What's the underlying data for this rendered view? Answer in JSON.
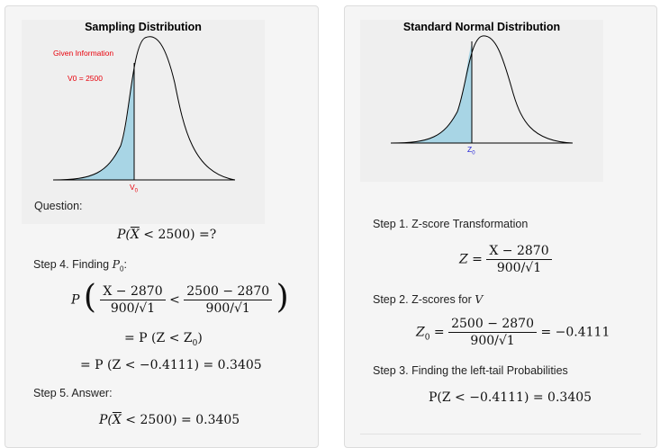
{
  "left": {
    "plot": {
      "title": "Sampling Distribution",
      "given": "Given Information",
      "v0_value": "V0 = 2500",
      "x_label": "V",
      "x_sub": "0",
      "colors": {
        "fill": "#a8d5e5",
        "curve": "#000000",
        "label": "#e8000b"
      }
    },
    "question_label": "Question:",
    "question": {
      "lhs_p": "P(",
      "xbar": "X",
      "rest": " < 2500) =?"
    },
    "step4": {
      "label": "Step 4. Finding ",
      "p": "P",
      "sub": "0",
      "colon": ":"
    },
    "step4_eq1": {
      "p": "P",
      "num1": "X − 2870",
      "den1": "900/√1",
      "lt": "<",
      "num2": "2500 − 2870",
      "den2": "900/√1"
    },
    "step4_eq2": "= P (Z < Z",
    "step4_eq2_sub": "0",
    "step4_eq2_end": ")",
    "step4_eq3": "= P (Z < −0.4111) = 0.3405",
    "step5_label": "Step 5. Answer:",
    "answer": {
      "p": "P(",
      "xbar": "X",
      "rest": " < 2500) = 0.3405"
    }
  },
  "right": {
    "plot": {
      "title": "Standard Normal Distribution",
      "x_label": "Z",
      "x_sub": "0",
      "colors": {
        "fill": "#a8d5e5",
        "curve": "#000000",
        "label": "#1f1fd6"
      }
    },
    "step1_label": "Step 1. Z-score Transformation",
    "step1_eq": {
      "z": "Z =",
      "num": "X − 2870",
      "den": "900/√1"
    },
    "step2_label": "Step 2. Z-scores for ",
    "step2_var": "V",
    "step2_eq": {
      "z": "Z",
      "sub": "0",
      "eq": " =",
      "num": "2500 − 2870",
      "den": "900/√1",
      "result": "= −0.4111"
    },
    "step3_label": "Step 3. Finding the left-tail Probabilities",
    "step3_eq": "P(Z < −0.4111) = 0.3405"
  }
}
